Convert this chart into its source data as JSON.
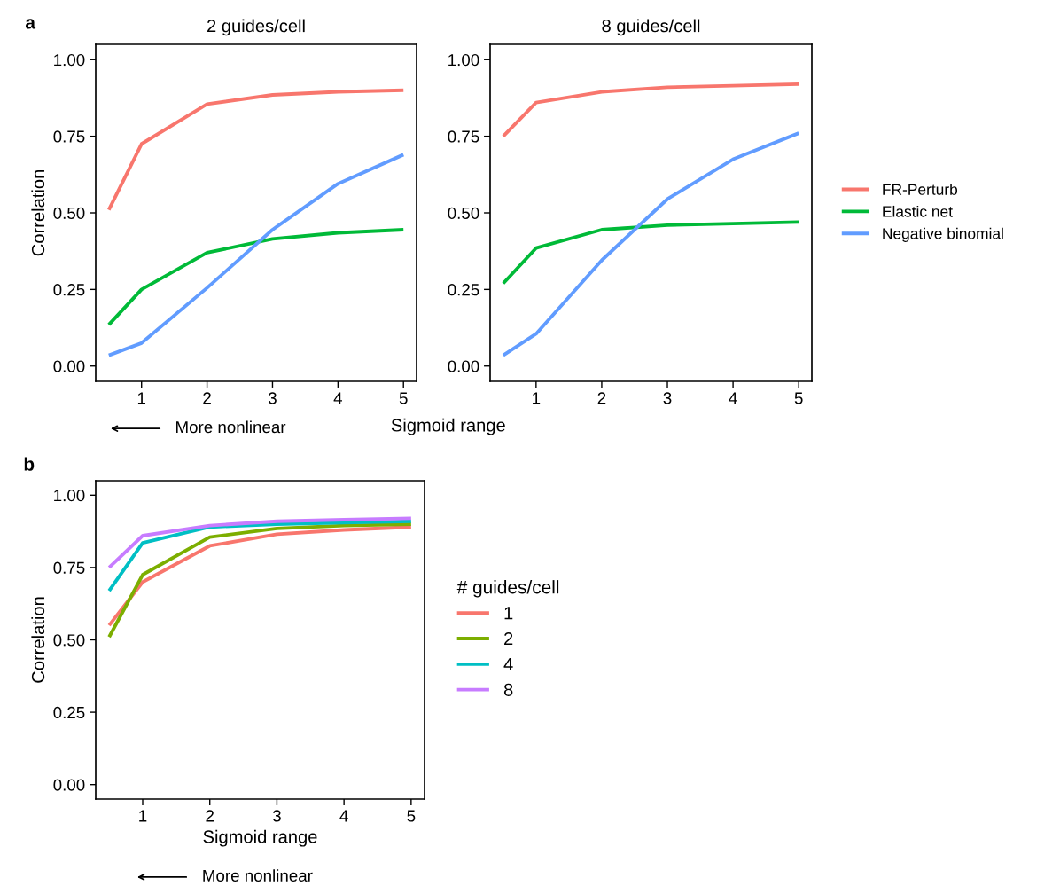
{
  "chart_data": [
    {
      "type": "line",
      "title": "2 guides/cell",
      "ylabel": "Correlation",
      "annotations": [
        "a",
        "More nonlinear"
      ],
      "x": [
        0.5,
        1,
        2,
        3,
        4,
        5
      ],
      "xlim": [
        0.3,
        5.2
      ],
      "xticks": [
        1,
        2,
        3,
        4,
        5
      ],
      "ylim": [
        -0.05,
        1.05
      ],
      "yticks": [
        {
          "value": 0,
          "label": "0.00"
        },
        {
          "value": 0.25,
          "label": "0.25"
        },
        {
          "value": 0.5,
          "label": "0.50"
        },
        {
          "value": 0.75,
          "label": "0.75"
        },
        {
          "value": 1,
          "label": "1.00"
        }
      ],
      "grid": false,
      "series": [
        {
          "color": "#f8766d",
          "values": [
            0.51,
            0.725,
            0.855,
            0.885,
            0.895,
            0.9
          ]
        },
        {
          "color": "#00ba38",
          "values": [
            0.135,
            0.25,
            0.37,
            0.415,
            0.435,
            0.445
          ]
        },
        {
          "color": "#619cff",
          "values": [
            0.035,
            0.075,
            0.255,
            0.445,
            0.595,
            0.69
          ]
        }
      ]
    },
    {
      "type": "line",
      "title": "8 guides/cell",
      "xlabel": "Sigmoid range",
      "x": [
        0.5,
        1,
        2,
        3,
        4,
        5
      ],
      "xlim": [
        0.3,
        5.2
      ],
      "xticks": [
        1,
        2,
        3,
        4,
        5
      ],
      "ylim": [
        -0.05,
        1.05
      ],
      "yticks": [
        {
          "value": 0,
          "label": "0.00"
        },
        {
          "value": 0.25,
          "label": "0.25"
        },
        {
          "value": 0.5,
          "label": "0.50"
        },
        {
          "value": 0.75,
          "label": "0.75"
        },
        {
          "value": 1,
          "label": "1.00"
        }
      ],
      "grid": false,
      "legend": "right",
      "series": [
        {
          "name": "FR-Perturb",
          "color": "#f8766d",
          "values": [
            0.75,
            0.86,
            0.895,
            0.91,
            0.915,
            0.92
          ]
        },
        {
          "name": "Elastic net",
          "color": "#00ba38",
          "values": [
            0.27,
            0.385,
            0.445,
            0.46,
            0.465,
            0.47
          ]
        },
        {
          "name": "Negative binomial",
          "color": "#619cff",
          "values": [
            0.035,
            0.105,
            0.345,
            0.545,
            0.675,
            0.76
          ]
        }
      ]
    },
    {
      "type": "line",
      "xlabel": "Sigmoid range",
      "ylabel": "Correlation",
      "legend_title": "# guides/cell",
      "annotations": [
        "b",
        "More nonlinear"
      ],
      "x": [
        0.5,
        1,
        2,
        3,
        4,
        5
      ],
      "xlim": [
        0.3,
        5.2
      ],
      "xticks": [
        1,
        2,
        3,
        4,
        5
      ],
      "ylim": [
        -0.05,
        1.05
      ],
      "yticks": [
        {
          "value": 0,
          "label": "0.00"
        },
        {
          "value": 0.25,
          "label": "0.25"
        },
        {
          "value": 0.5,
          "label": "0.50"
        },
        {
          "value": 0.75,
          "label": "0.75"
        },
        {
          "value": 1,
          "label": "1.00"
        }
      ],
      "grid": false,
      "legend": "right",
      "series": [
        {
          "name": "1",
          "color": "#f8766d",
          "values": [
            0.55,
            0.7,
            0.825,
            0.865,
            0.88,
            0.89
          ]
        },
        {
          "name": "2",
          "color": "#7cae00",
          "values": [
            0.51,
            0.725,
            0.855,
            0.885,
            0.895,
            0.9
          ]
        },
        {
          "name": "4",
          "color": "#00bfc4",
          "values": [
            0.67,
            0.835,
            0.89,
            0.9,
            0.905,
            0.91
          ]
        },
        {
          "name": "8",
          "color": "#c77cff",
          "values": [
            0.75,
            0.86,
            0.895,
            0.91,
            0.915,
            0.92
          ]
        }
      ]
    }
  ]
}
